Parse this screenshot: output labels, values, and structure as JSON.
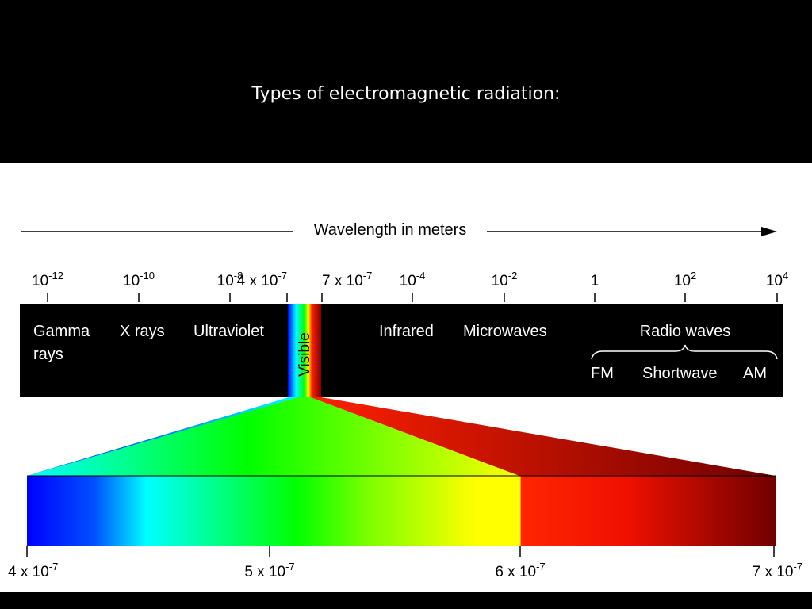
{
  "slide": {
    "title": "Types of electromagnetic radiation:"
  },
  "diagram": {
    "axis_label": "Wavelength in meters",
    "scale_ticks": [
      {
        "base": "10",
        "exp": "-12"
      },
      {
        "base": "10",
        "exp": "-10"
      },
      {
        "base": "10",
        "exp": "-8"
      },
      {
        "base": "4 x 10",
        "exp": "-7"
      },
      {
        "base": "7 x 10",
        "exp": "-7"
      },
      {
        "base": "10",
        "exp": "-4"
      },
      {
        "base": "10",
        "exp": "-2"
      },
      {
        "base": "1",
        "exp": ""
      },
      {
        "base": "10",
        "exp": "2"
      },
      {
        "base": "10",
        "exp": "4"
      }
    ],
    "bands": {
      "gamma_line1": "Gamma",
      "gamma_line2": "rays",
      "xrays": "X rays",
      "ultraviolet": "Ultraviolet",
      "visible": "Visible",
      "infrared": "Infrared",
      "microwaves": "Microwaves",
      "radio": "Radio waves",
      "fm": "FM",
      "shortwave": "Shortwave",
      "am": "AM"
    },
    "visible_scale_ticks": [
      {
        "base": "4 x 10",
        "exp": "-7"
      },
      {
        "base": "5 x 10",
        "exp": "-7"
      },
      {
        "base": "6 x 10",
        "exp": "-7"
      },
      {
        "base": "7 x 10",
        "exp": "-7"
      }
    ],
    "colors": {
      "violet": "#0000ff",
      "blue": "#0080ff",
      "cyan": "#00ffff",
      "green": "#00ff00",
      "yellow": "#ffff00",
      "orange": "#ff3300",
      "red": "#e01000",
      "dark_red": "#700000"
    }
  }
}
